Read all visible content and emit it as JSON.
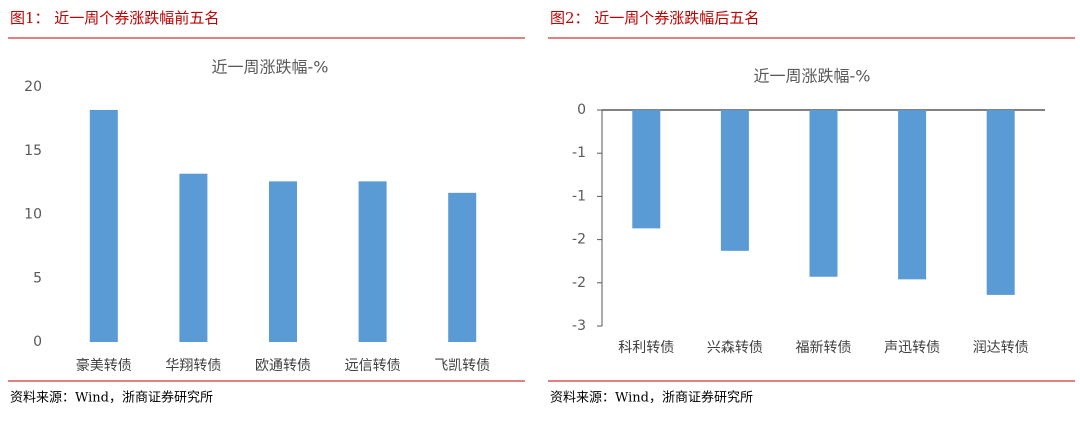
{
  "chart_data": [
    {
      "type": "bar",
      "caption": "图1：  近一周个券涨跌幅前五名",
      "title": "近一周涨跌幅-%",
      "categories": [
        "豪美转债",
        "华翔转债",
        "欧通转债",
        "远信转债",
        "飞凯转债"
      ],
      "values": [
        18.2,
        13.2,
        12.6,
        12.6,
        11.7
      ],
      "color": "#5b9bd5",
      "ylim": [
        0,
        20
      ],
      "yticks": [
        0,
        5,
        10,
        15,
        20
      ],
      "source": "资料来源：Wind，浙商证券研究所"
    },
    {
      "type": "bar",
      "caption": "图2：  近一周个券涨跌幅后五名",
      "title": "近一周涨跌幅-%",
      "categories": [
        "科利转债",
        "兴森转债",
        "福新转债",
        "声迅转债",
        "润达转债"
      ],
      "values": [
        -1.37,
        -1.63,
        -1.93,
        -1.96,
        -2.14
      ],
      "color": "#5b9bd5",
      "ylim": [
        -2.5,
        0
      ],
      "yticks": [
        0,
        {
          "value": -0.5,
          "label": "-1"
        },
        -1,
        {
          "value": -1.5,
          "label": "-2"
        },
        -2,
        {
          "value": -2.5,
          "label": "-3"
        }
      ],
      "source": "资料来源：Wind，浙商证券研究所"
    }
  ]
}
